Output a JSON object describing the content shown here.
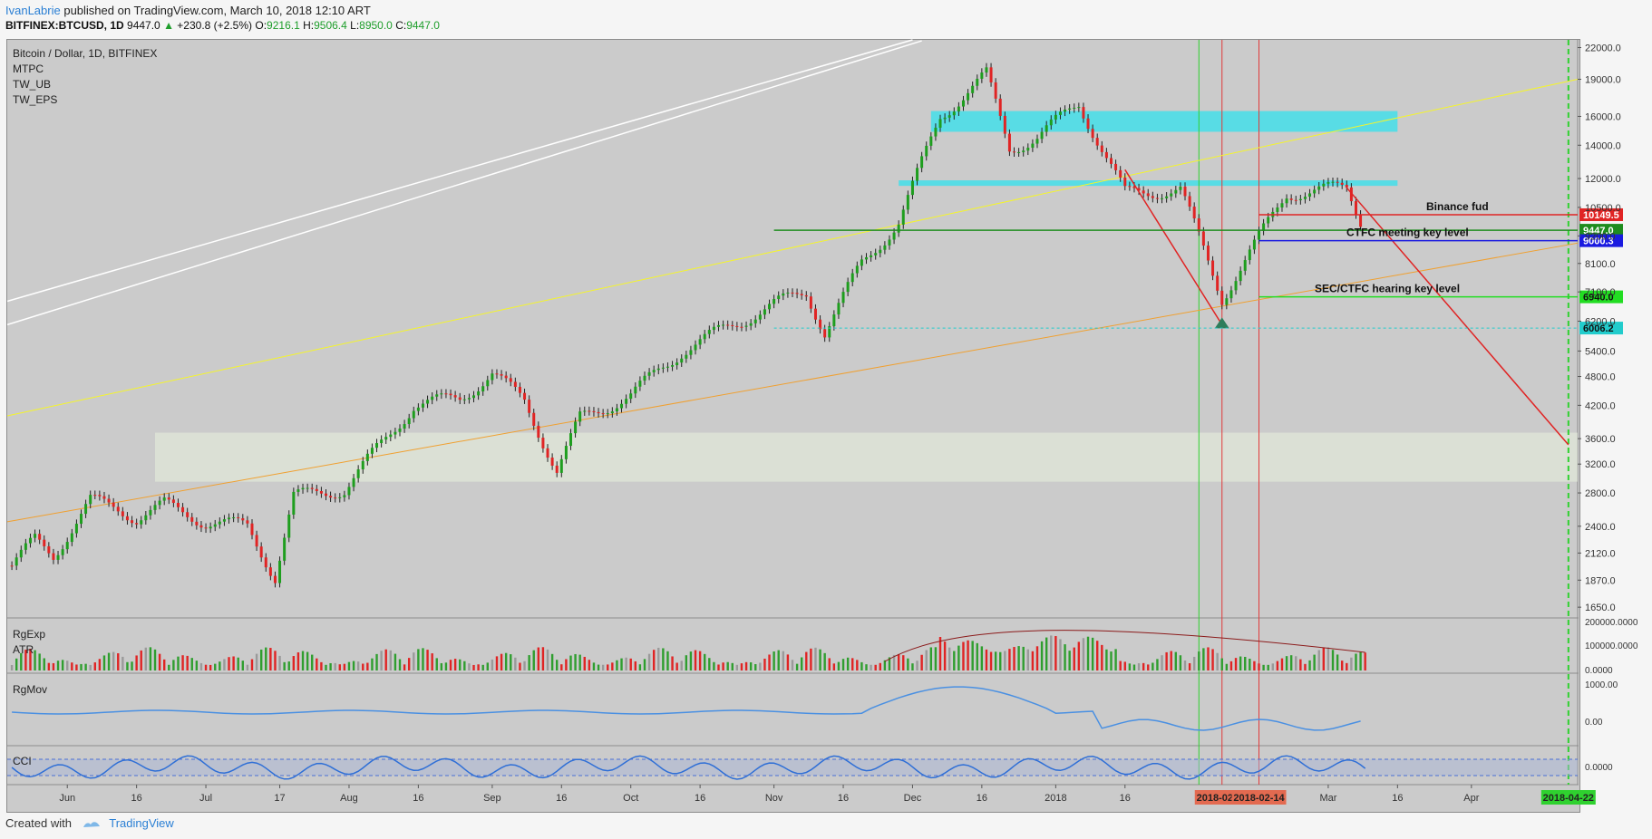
{
  "header": {
    "author": "IvanLabrie",
    "published_text": "published on TradingView.com, March 10, 2018 12:10 ART",
    "symbol": "BITFINEX:BTCUSD, 1D",
    "last": "9447.0",
    "change": "+230.8 (+2.5%)",
    "o_label": "O:",
    "o": "9216.1",
    "h_label": "H:",
    "h": "9506.4",
    "l_label": "L:",
    "l": "8950.0",
    "c_label": "C:",
    "c": "9447.0"
  },
  "indicators": {
    "title": "Bitcoin / Dollar, 1D, BITFINEX",
    "list": [
      "MTPC",
      "TW_UB",
      "TW_EPS"
    ],
    "pane2": [
      "RgExp",
      "ATR"
    ],
    "pane3": "RgMov",
    "pane4": "CCI"
  },
  "footer": {
    "created_with": "Created with",
    "brand": "TradingView"
  },
  "colors": {
    "bull": "#1e9e1e",
    "bear": "#e02424",
    "accent_cyan": "#27e2f0",
    "accent_yellow": "#f5f52a",
    "accent_orange": "#f0a030",
    "rsi_blue": "#2f6fd6"
  },
  "chart_data": {
    "type": "candlestick",
    "title": "Bitcoin / Dollar, 1D, BITFINEX",
    "y_scale": "log",
    "ylim": [
      1570,
      22800
    ],
    "price_ticks": [
      22000,
      19000,
      16000,
      14000,
      12000,
      10500,
      9200,
      8100,
      7100,
      6200,
      5400,
      4800,
      4200,
      3600,
      3200,
      2800,
      2400,
      2120,
      1870,
      1650
    ],
    "x_ticks": [
      "Jun",
      "16",
      "Jul",
      "17",
      "Aug",
      "16",
      "Sep",
      "16",
      "Oct",
      "16",
      "Nov",
      "16",
      "Dec",
      "16",
      "2018",
      "16",
      "Mar",
      "16",
      "Apr"
    ],
    "x_tick_dates": [
      "2017-06-01",
      "2017-06-16",
      "2017-07-01",
      "2017-07-17",
      "2017-08-01",
      "2017-08-16",
      "2017-09-01",
      "2017-09-16",
      "2017-10-01",
      "2017-10-16",
      "2017-11-01",
      "2017-11-16",
      "2017-12-01",
      "2017-12-16",
      "2018-01-01",
      "2018-01-16",
      "2018-03-01",
      "2018-03-16",
      "2018-04-01"
    ],
    "price_series": [
      {
        "date": "2017-05-20",
        "close": 2000
      },
      {
        "date": "2017-05-25",
        "close": 2250
      },
      {
        "date": "2017-05-29",
        "close": 2100
      },
      {
        "date": "2017-06-06",
        "close": 2700
      },
      {
        "date": "2017-06-12",
        "close": 2600
      },
      {
        "date": "2017-06-16",
        "close": 2500
      },
      {
        "date": "2017-06-22",
        "close": 2650
      },
      {
        "date": "2017-07-01",
        "close": 2450
      },
      {
        "date": "2017-07-10",
        "close": 2400
      },
      {
        "date": "2017-07-16",
        "close": 1900
      },
      {
        "date": "2017-07-20",
        "close": 2750
      },
      {
        "date": "2017-07-31",
        "close": 2850
      },
      {
        "date": "2017-08-05",
        "close": 3250
      },
      {
        "date": "2017-08-15",
        "close": 4200
      },
      {
        "date": "2017-08-25",
        "close": 4350
      },
      {
        "date": "2017-09-01",
        "close": 4850
      },
      {
        "date": "2017-09-08",
        "close": 4300
      },
      {
        "date": "2017-09-15",
        "close": 3100
      },
      {
        "date": "2017-09-20",
        "close": 3950
      },
      {
        "date": "2017-10-01",
        "close": 4400
      },
      {
        "date": "2017-10-12",
        "close": 5400
      },
      {
        "date": "2017-10-20",
        "close": 5900
      },
      {
        "date": "2017-11-01",
        "close": 6700
      },
      {
        "date": "2017-11-08",
        "close": 7100
      },
      {
        "date": "2017-11-12",
        "close": 5900
      },
      {
        "date": "2017-11-20",
        "close": 8100
      },
      {
        "date": "2017-11-28",
        "close": 9800
      },
      {
        "date": "2017-12-07",
        "close": 16000
      },
      {
        "date": "2017-12-17",
        "close": 19400
      },
      {
        "date": "2017-12-22",
        "close": 13800
      },
      {
        "date": "2017-12-28",
        "close": 14500
      },
      {
        "date": "2018-01-06",
        "close": 17000
      },
      {
        "date": "2018-01-16",
        "close": 11200
      },
      {
        "date": "2018-01-28",
        "close": 11400
      },
      {
        "date": "2018-02-06",
        "close": 6900
      },
      {
        "date": "2018-02-12",
        "close": 8500
      },
      {
        "date": "2018-02-20",
        "close": 11200
      },
      {
        "date": "2018-03-05",
        "close": 11500
      },
      {
        "date": "2018-03-09",
        "close": 9447
      }
    ],
    "levels": [
      {
        "price": 10149.5,
        "label": "Binance fud",
        "tag": "10149.5",
        "color": "#e02424"
      },
      {
        "price": 9447.0,
        "label": "",
        "tag": "9447.0",
        "color": "#1e8c1e"
      },
      {
        "price": 9000.3,
        "label": "CTFC meeting key level",
        "tag": "9000.3",
        "color": "#1a1ae0"
      },
      {
        "price": 6940.0,
        "label": "SEC/CTFC hearing key level",
        "tag": "6940.0",
        "color": "#22dd22"
      },
      {
        "price": 6006.2,
        "label": "",
        "tag": "6006.2",
        "color": "#22cccc"
      }
    ],
    "date_markers": [
      {
        "label": "2018-02-06",
        "color": "#e36a50"
      },
      {
        "label": "2018-02-14",
        "color": "#e36a50"
      },
      {
        "label": "2018-04-22",
        "color": "#2fd12f"
      }
    ],
    "atr_ticks": [
      "200000.0000",
      "100000.0000",
      "0.0000"
    ],
    "rgmov_ticks": [
      "1000.00",
      "0.00"
    ],
    "cci_ticks": [
      "0.0000"
    ]
  }
}
